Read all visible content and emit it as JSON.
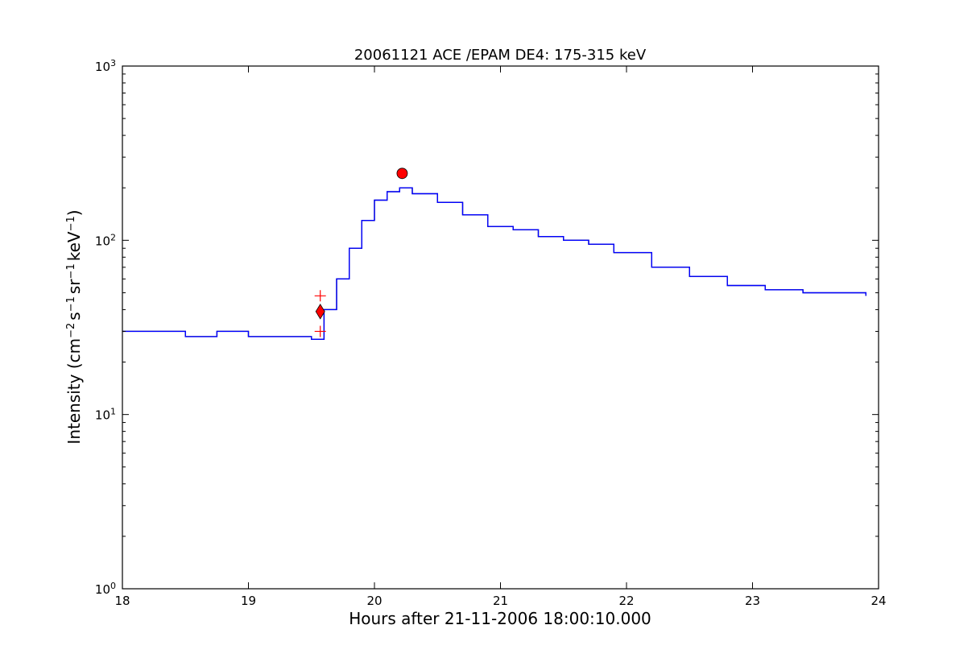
{
  "chart_data": {
    "type": "line",
    "title": "20061121 ACE /EPAM DE4: 175-315 keV",
    "xlabel": "Hours after 21-11-2006 18:00:10.000",
    "ylabel": {
      "prefix": "Intensity (cm",
      "sup1": "−2",
      "mid1": "s",
      "sup2": "−1",
      "mid2": "sr",
      "sup3": "−1",
      "mid3": "keV",
      "sup4": "−1",
      "suffix": ")"
    },
    "xlim": [
      18,
      24
    ],
    "ylim": [
      1,
      1000
    ],
    "yscale": "log",
    "x_ticks": [
      "18",
      "19",
      "20",
      "21",
      "22",
      "23",
      "24"
    ],
    "y_ticks": [
      {
        "value": 1,
        "base": "10",
        "exp": "0"
      },
      {
        "value": 10,
        "base": "10",
        "exp": "1"
      },
      {
        "value": 100,
        "base": "10",
        "exp": "2"
      },
      {
        "value": 1000,
        "base": "10",
        "exp": "3"
      }
    ],
    "series": [
      {
        "color": "#000000",
        "style": "raw-intensity",
        "x": [
          18.0,
          18.25,
          18.5,
          18.75,
          19.0,
          19.25,
          19.5,
          19.6,
          19.7,
          19.8,
          19.9,
          20.0,
          20.1,
          20.2,
          20.3,
          20.5,
          20.7,
          20.9,
          21.1,
          21.3,
          21.5,
          21.7,
          21.9,
          22.2,
          22.5,
          22.8,
          23.1,
          23.4,
          23.7,
          23.9
        ],
        "y": [
          30,
          30,
          28,
          30,
          28,
          28,
          27,
          40,
          60,
          90,
          130,
          170,
          190,
          200,
          185,
          165,
          140,
          120,
          115,
          105,
          100,
          95,
          85,
          70,
          62,
          55,
          52,
          50,
          50,
          48
        ]
      },
      {
        "color": "#0000ff",
        "style": "smoothed-intensity",
        "x": [
          18.0,
          18.25,
          18.5,
          18.75,
          19.0,
          19.25,
          19.5,
          19.6,
          19.7,
          19.8,
          19.9,
          20.0,
          20.1,
          20.2,
          20.3,
          20.5,
          20.7,
          20.9,
          21.1,
          21.3,
          21.5,
          21.7,
          21.9,
          22.2,
          22.5,
          22.8,
          23.1,
          23.4,
          23.7,
          23.9
        ],
        "y": [
          30,
          30,
          28,
          30,
          28,
          28,
          27,
          40,
          60,
          90,
          130,
          170,
          190,
          200,
          185,
          165,
          140,
          120,
          115,
          105,
          100,
          95,
          85,
          70,
          62,
          55,
          52,
          50,
          50,
          48
        ]
      }
    ],
    "markers": [
      {
        "name": "peak",
        "shape": "circle",
        "color": "#ff0000",
        "x": 20.22,
        "y": 242
      },
      {
        "name": "onset",
        "shape": "diamond",
        "color": "#ff0000",
        "x": 19.57,
        "y": 39
      },
      {
        "name": "onset-upper",
        "shape": "plus",
        "color": "#ff0000",
        "x": 19.57,
        "y": 48
      },
      {
        "name": "onset-lower",
        "shape": "plus",
        "color": "#ff0000",
        "x": 19.57,
        "y": 30
      }
    ],
    "grid": false,
    "legend": "none"
  }
}
